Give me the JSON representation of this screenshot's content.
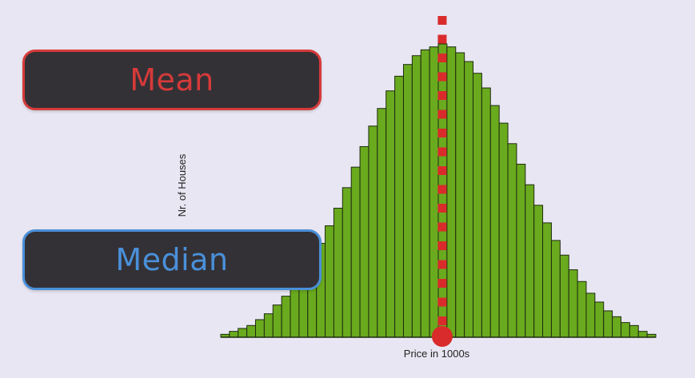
{
  "labels": {
    "mean": "Mean",
    "median": "Median"
  },
  "colors": {
    "background": "#e8e6f2",
    "bar_fill": "#6aaa1e",
    "bar_stroke": "#1e2a10",
    "mean_accent": "#d63a3a",
    "median_accent": "#4a90d9",
    "marker": "#d92b2b",
    "pill_bg": "#333136"
  },
  "chart_data": {
    "type": "bar",
    "title": "",
    "xlabel": "Price in 1000s",
    "ylabel": "Nr. of Houses",
    "tick_labels": false,
    "grid": false,
    "legend": "none",
    "ylim": [
      0,
      100
    ],
    "values": [
      1,
      2,
      3,
      4,
      6,
      8,
      11,
      14,
      18,
      22,
      27,
      32,
      38,
      44,
      51,
      58,
      65,
      72,
      78,
      84,
      89,
      93,
      96,
      98,
      99,
      100,
      99,
      97,
      94,
      90,
      85,
      79,
      73,
      66,
      59,
      52,
      45,
      39,
      33,
      28,
      23,
      19,
      15,
      12,
      9,
      7,
      5,
      4,
      2,
      1
    ],
    "center_marker_bin": 25,
    "center_marker": "mean and median coincide at the peak"
  }
}
